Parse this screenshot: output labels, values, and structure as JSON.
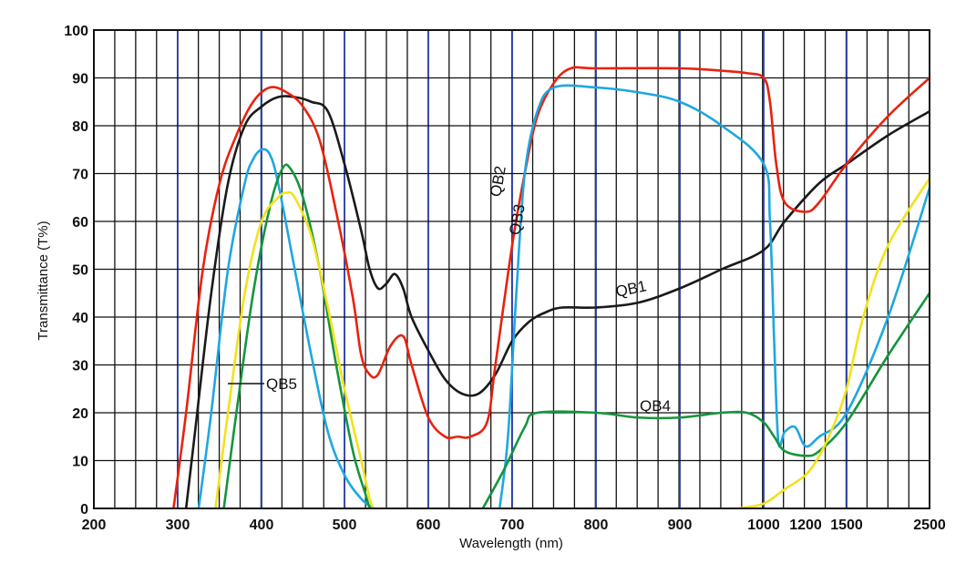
{
  "chart_data": {
    "type": "line",
    "xlabel": "Wavelength (nm)",
    "ylabel": "Transmittance (T%)",
    "ylim": [
      0,
      100
    ],
    "grid": true,
    "x_tick_labels": [
      "200",
      "300",
      "400",
      "500",
      "600",
      "700",
      "800",
      "900",
      "1000",
      "1200",
      "1500",
      "2500"
    ],
    "y_tick_labels": [
      "0",
      "10",
      "20",
      "30",
      "40",
      "50",
      "60",
      "70",
      "80",
      "90",
      "100"
    ],
    "colors": {
      "QB1": "#1a1a1a",
      "QB2": "#e8220e",
      "QB3": "#1ea7e1",
      "QB4": "#14963c",
      "QB5": "#f2e21a",
      "major_grid": "#2b3fa6",
      "minor_grid": "#111111"
    },
    "series": [
      {
        "name": "QB1",
        "color": "#1a1a1a",
        "points": [
          [
            "310",
            0
          ],
          [
            "320",
            15
          ],
          [
            "340",
            45
          ],
          [
            "360",
            68
          ],
          [
            "380",
            80
          ],
          [
            "400",
            84
          ],
          [
            "420",
            86
          ],
          [
            "440",
            86
          ],
          [
            "460",
            85
          ],
          [
            "480",
            83
          ],
          [
            "500",
            72
          ],
          [
            "520",
            58
          ],
          [
            "530",
            50
          ],
          [
            "540",
            46
          ],
          [
            "550",
            47
          ],
          [
            "560",
            49
          ],
          [
            "570",
            46
          ],
          [
            "580",
            40
          ],
          [
            "600",
            33
          ],
          [
            "620",
            27
          ],
          [
            "640",
            24
          ],
          [
            "660",
            24
          ],
          [
            "680",
            28
          ],
          [
            "700",
            35
          ],
          [
            "720",
            39
          ],
          [
            "740",
            41
          ],
          [
            "760",
            42
          ],
          [
            "800",
            42
          ],
          [
            "850",
            43
          ],
          [
            "900",
            46
          ],
          [
            "950",
            50
          ],
          [
            "1000",
            54
          ],
          [
            "1100",
            60
          ],
          [
            "1300",
            68
          ],
          [
            "1500",
            72
          ],
          [
            "2000",
            78
          ],
          [
            "2500",
            83
          ]
        ]
      },
      {
        "name": "QB2",
        "color": "#e8220e",
        "points": [
          [
            "295",
            0
          ],
          [
            "310",
            20
          ],
          [
            "330",
            50
          ],
          [
            "350",
            68
          ],
          [
            "370",
            78
          ],
          [
            "390",
            85
          ],
          [
            "410",
            88
          ],
          [
            "430",
            87
          ],
          [
            "450",
            84
          ],
          [
            "470",
            77
          ],
          [
            "490",
            62
          ],
          [
            "510",
            44
          ],
          [
            "520",
            32
          ],
          [
            "530",
            28
          ],
          [
            "540",
            28
          ],
          [
            "555",
            34
          ],
          [
            "570",
            36
          ],
          [
            "580",
            30
          ],
          [
            "600",
            19
          ],
          [
            "620",
            15
          ],
          [
            "635",
            15
          ],
          [
            "650",
            15
          ],
          [
            "670",
            18
          ],
          [
            "680",
            30
          ],
          [
            "700",
            55
          ],
          [
            "715",
            70
          ],
          [
            "730",
            82
          ],
          [
            "750",
            89
          ],
          [
            "770",
            92
          ],
          [
            "800",
            92
          ],
          [
            "900",
            92
          ],
          [
            "950",
            91.5
          ],
          [
            "980",
            91
          ],
          [
            "1000",
            90
          ],
          [
            "1030",
            85
          ],
          [
            "1060",
            72
          ],
          [
            "1100",
            64
          ],
          [
            "1200",
            62
          ],
          [
            "1300",
            64
          ],
          [
            "1500",
            72
          ],
          [
            "2000",
            82
          ],
          [
            "2500",
            90
          ]
        ]
      },
      {
        "name": "QB3",
        "color": "#1ea7e1",
        "points": [
          [
            "325",
            0
          ],
          [
            "340",
            20
          ],
          [
            "360",
            50
          ],
          [
            "380",
            68
          ],
          [
            "390",
            73
          ],
          [
            "400",
            75
          ],
          [
            "410",
            74
          ],
          [
            "420",
            68
          ],
          [
            "440",
            50
          ],
          [
            "460",
            32
          ],
          [
            "480",
            16
          ],
          [
            "500",
            7
          ],
          [
            "520",
            2
          ],
          [
            "535",
            0
          ],
          [
            "685",
            0
          ],
          [
            "695",
            15
          ],
          [
            "705",
            45
          ],
          [
            "715",
            70
          ],
          [
            "730",
            83
          ],
          [
            "750",
            88
          ],
          [
            "800",
            88
          ],
          [
            "850",
            87
          ],
          [
            "900",
            85
          ],
          [
            "950",
            80
          ],
          [
            "1000",
            72
          ],
          [
            "1030",
            60
          ],
          [
            "1050",
            35
          ],
          [
            "1070",
            14
          ],
          [
            "1100",
            16
          ],
          [
            "1150",
            17
          ],
          [
            "1200",
            13
          ],
          [
            "1300",
            15
          ],
          [
            "1500",
            20
          ],
          [
            "2000",
            40
          ],
          [
            "2500",
            67
          ]
        ]
      },
      {
        "name": "QB4",
        "color": "#14963c",
        "points": [
          [
            "355",
            0
          ],
          [
            "370",
            20
          ],
          [
            "390",
            45
          ],
          [
            "410",
            63
          ],
          [
            "425",
            71
          ],
          [
            "435",
            71
          ],
          [
            "450",
            65
          ],
          [
            "470",
            50
          ],
          [
            "490",
            30
          ],
          [
            "510",
            12
          ],
          [
            "525",
            3
          ],
          [
            "530",
            0
          ],
          [
            "665",
            0
          ],
          [
            "690",
            8
          ],
          [
            "715",
            17
          ],
          [
            "730",
            20
          ],
          [
            "800",
            20
          ],
          [
            "850",
            19
          ],
          [
            "900",
            19
          ],
          [
            "950",
            20
          ],
          [
            "980",
            20
          ],
          [
            "1000",
            18
          ],
          [
            "1050",
            15
          ],
          [
            "1100",
            12
          ],
          [
            "1200",
            11
          ],
          [
            "1300",
            12
          ],
          [
            "1500",
            18
          ],
          [
            "2000",
            32
          ],
          [
            "2500",
            45
          ]
        ]
      },
      {
        "name": "QB5",
        "color": "#f2e21a",
        "points": [
          [
            "345",
            0
          ],
          [
            "360",
            20
          ],
          [
            "380",
            45
          ],
          [
            "400",
            60
          ],
          [
            "420",
            65
          ],
          [
            "430",
            66
          ],
          [
            "440",
            65
          ],
          [
            "460",
            57
          ],
          [
            "480",
            42
          ],
          [
            "500",
            25
          ],
          [
            "520",
            10
          ],
          [
            "530",
            2
          ],
          [
            "535",
            0
          ],
          [
            "970",
            0
          ],
          [
            "1000",
            1
          ],
          [
            "1100",
            4
          ],
          [
            "1200",
            7
          ],
          [
            "1300",
            11
          ],
          [
            "1400",
            17
          ],
          [
            "1500",
            25
          ],
          [
            "1700",
            40
          ],
          [
            "2000",
            55
          ],
          [
            "2500",
            69
          ]
        ]
      }
    ],
    "annotations": [
      {
        "text": "QB1",
        "series": "QB1"
      },
      {
        "text": "QB2",
        "series": "QB2"
      },
      {
        "text": "QB3",
        "series": "QB3"
      },
      {
        "text": "QB4",
        "series": "QB4"
      },
      {
        "text": "QB5",
        "series": "QB5"
      }
    ]
  }
}
